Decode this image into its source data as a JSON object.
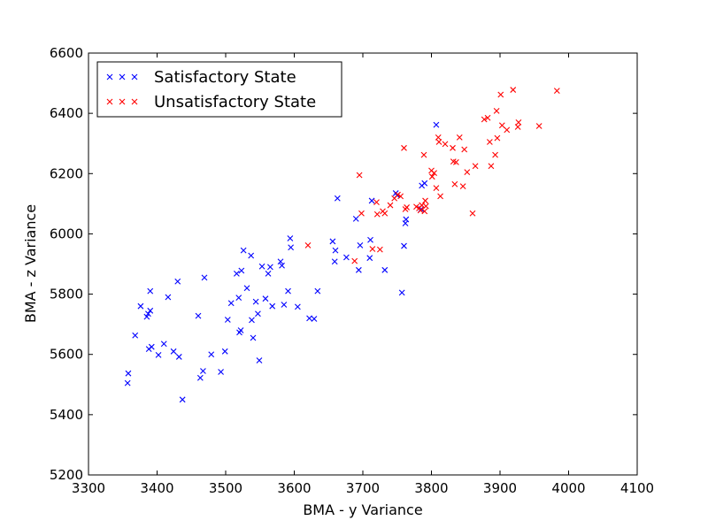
{
  "chart_data": {
    "type": "scatter",
    "title": "",
    "xlabel": "BMA - y Variance",
    "ylabel": "BMA - z Variance",
    "xlim": [
      3300,
      4100
    ],
    "ylim": [
      5200,
      6600
    ],
    "xticks": [
      "3300",
      "3400",
      "3500",
      "3600",
      "3700",
      "3800",
      "3900",
      "4000",
      "4100"
    ],
    "yticks": [
      "5200",
      "5400",
      "5600",
      "5800",
      "6000",
      "6200",
      "6400",
      "6600"
    ],
    "legend_position": "top-left",
    "grid": false,
    "marker": "x",
    "series": [
      {
        "name": "Satisfactory State",
        "color": "#0000ff",
        "points": [
          [
            3357,
            5505
          ],
          [
            3358,
            5537
          ],
          [
            3368,
            5663
          ],
          [
            3376,
            5760
          ],
          [
            3385,
            5725
          ],
          [
            3387,
            5735
          ],
          [
            3390,
            5810
          ],
          [
            3390,
            5745
          ],
          [
            3388,
            5618
          ],
          [
            3392,
            5625
          ],
          [
            3402,
            5598
          ],
          [
            3410,
            5635
          ],
          [
            3416,
            5790
          ],
          [
            3424,
            5610
          ],
          [
            3430,
            5842
          ],
          [
            3432,
            5592
          ],
          [
            3437,
            5450
          ],
          [
            3460,
            5728
          ],
          [
            3463,
            5522
          ],
          [
            3467,
            5545
          ],
          [
            3469,
            5855
          ],
          [
            3479,
            5600
          ],
          [
            3493,
            5542
          ],
          [
            3499,
            5610
          ],
          [
            3503,
            5715
          ],
          [
            3508,
            5770
          ],
          [
            3516,
            5868
          ],
          [
            3519,
            5788
          ],
          [
            3520,
            5673
          ],
          [
            3522,
            5680
          ],
          [
            3523,
            5878
          ],
          [
            3526,
            5945
          ],
          [
            3531,
            5820
          ],
          [
            3537,
            5928
          ],
          [
            3538,
            5714
          ],
          [
            3540,
            5655
          ],
          [
            3544,
            5775
          ],
          [
            3547,
            5735
          ],
          [
            3549,
            5580
          ],
          [
            3553,
            5892
          ],
          [
            3558,
            5785
          ],
          [
            3562,
            5868
          ],
          [
            3565,
            5890
          ],
          [
            3568,
            5760
          ],
          [
            3580,
            5908
          ],
          [
            3582,
            5895
          ],
          [
            3585,
            5765
          ],
          [
            3591,
            5810
          ],
          [
            3594,
            5985
          ],
          [
            3595,
            5955
          ],
          [
            3605,
            5758
          ],
          [
            3622,
            5720
          ],
          [
            3629,
            5718
          ],
          [
            3634,
            5810
          ],
          [
            3656,
            5975
          ],
          [
            3659,
            5908
          ],
          [
            3660,
            5945
          ],
          [
            3663,
            6118
          ],
          [
            3676,
            5922
          ],
          [
            3690,
            6050
          ],
          [
            3694,
            5880
          ],
          [
            3696,
            5962
          ],
          [
            3710,
            5920
          ],
          [
            3711,
            5980
          ],
          [
            3713,
            6110
          ],
          [
            3732,
            5880
          ],
          [
            3748,
            6135
          ],
          [
            3750,
            6128
          ],
          [
            3757,
            5805
          ],
          [
            3760,
            5960
          ],
          [
            3762,
            6035
          ],
          [
            3763,
            6048
          ],
          [
            3785,
            6082
          ],
          [
            3786,
            6160
          ],
          [
            3790,
            6168
          ],
          [
            3807,
            6362
          ]
        ]
      },
      {
        "name": "Unsatisfactory State",
        "color": "#ff0000",
        "points": [
          [
            3620,
            5962
          ],
          [
            3688,
            5910
          ],
          [
            3695,
            6195
          ],
          [
            3698,
            6068
          ],
          [
            3714,
            5950
          ],
          [
            3720,
            6105
          ],
          [
            3721,
            6065
          ],
          [
            3725,
            5948
          ],
          [
            3729,
            6075
          ],
          [
            3732,
            6068
          ],
          [
            3740,
            6095
          ],
          [
            3746,
            6118
          ],
          [
            3751,
            6130
          ],
          [
            3755,
            6125
          ],
          [
            3760,
            6285
          ],
          [
            3762,
            6082
          ],
          [
            3764,
            6088
          ],
          [
            3778,
            6090
          ],
          [
            3782,
            6085
          ],
          [
            3784,
            6078
          ],
          [
            3786,
            6095
          ],
          [
            3789,
            6262
          ],
          [
            3790,
            6075
          ],
          [
            3791,
            6110
          ],
          [
            3792,
            6092
          ],
          [
            3800,
            6210
          ],
          [
            3801,
            6190
          ],
          [
            3804,
            6202
          ],
          [
            3807,
            6152
          ],
          [
            3810,
            6320
          ],
          [
            3811,
            6305
          ],
          [
            3813,
            6125
          ],
          [
            3820,
            6298
          ],
          [
            3831,
            6285
          ],
          [
            3832,
            6240
          ],
          [
            3834,
            6165
          ],
          [
            3836,
            6238
          ],
          [
            3841,
            6320
          ],
          [
            3846,
            6158
          ],
          [
            3848,
            6280
          ],
          [
            3852,
            6205
          ],
          [
            3860,
            6068
          ],
          [
            3864,
            6225
          ],
          [
            3877,
            6380
          ],
          [
            3882,
            6385
          ],
          [
            3885,
            6305
          ],
          [
            3887,
            6225
          ],
          [
            3893,
            6262
          ],
          [
            3895,
            6408
          ],
          [
            3896,
            6318
          ],
          [
            3901,
            6462
          ],
          [
            3903,
            6360
          ],
          [
            3910,
            6345
          ],
          [
            3919,
            6478
          ],
          [
            3926,
            6355
          ],
          [
            3927,
            6370
          ],
          [
            3957,
            6358
          ],
          [
            3983,
            6475
          ]
        ]
      }
    ]
  }
}
